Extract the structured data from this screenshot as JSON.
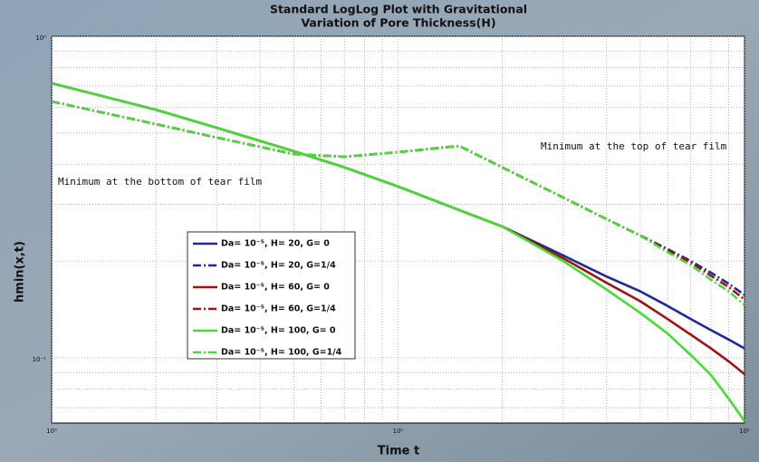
{
  "chart_data": {
    "type": "line",
    "title": [
      "Standard LogLog Plot with Gravitational",
      "Variation of Pore Thickness(H)"
    ],
    "x_label": "Time t",
    "y_label": "hmin(x,t)",
    "log_x": true,
    "log_y": true,
    "grid": true,
    "xlim": [
      1,
      100
    ],
    "ylim": [
      0.0627,
      1
    ],
    "xticks": [
      {
        "value": 1,
        "label": "10⁰"
      },
      {
        "value": 10,
        "label": "10¹"
      },
      {
        "value": 100,
        "label": "10²"
      }
    ],
    "yticks": [
      {
        "value": 0.1,
        "label": "10⁻¹"
      },
      {
        "value": 1,
        "label": "10⁰"
      }
    ],
    "x": [
      1,
      2,
      3,
      5,
      7,
      10,
      15,
      20,
      30,
      40,
      50,
      60,
      70,
      80,
      90,
      100
    ],
    "series": [
      {
        "name": "Da= 10⁻⁵, H= 20, G= 0",
        "color": "#1c2a9c",
        "dash": "solid",
        "values": [
          0.714,
          0.591,
          0.519,
          0.439,
          0.391,
          0.341,
          0.288,
          0.256,
          0.208,
          0.179,
          0.161,
          0.145,
          0.132,
          0.122,
          0.114,
          0.107
        ]
      },
      {
        "name": "Da= 10⁻⁵, H= 20, G=1/4",
        "color": "#1c2a9c",
        "dash": "dashdot",
        "values": [
          0.627,
          0.533,
          0.484,
          0.43,
          0.422,
          0.436,
          0.456,
          0.391,
          0.315,
          0.27,
          0.24,
          0.218,
          0.2,
          0.184,
          0.17,
          0.157
        ]
      },
      {
        "name": "Da= 10⁻⁵, H= 60, G= 0",
        "color": "#a31212",
        "dash": "solid",
        "values": [
          0.714,
          0.591,
          0.519,
          0.439,
          0.391,
          0.341,
          0.288,
          0.256,
          0.204,
          0.171,
          0.15,
          0.132,
          0.118,
          0.107,
          0.0975,
          0.089
        ]
      },
      {
        "name": "Da= 10⁻⁵, H= 60, G=1/4",
        "color": "#a31212",
        "dash": "dashdot",
        "values": [
          0.627,
          0.533,
          0.484,
          0.43,
          0.422,
          0.436,
          0.456,
          0.391,
          0.315,
          0.27,
          0.24,
          0.216,
          0.198,
          0.18,
          0.166,
          0.152
        ]
      },
      {
        "name": "Da= 10⁻⁵, H= 100, G= 0",
        "color": "#44dd33",
        "dash": "solid",
        "values": [
          0.714,
          0.591,
          0.519,
          0.439,
          0.391,
          0.341,
          0.288,
          0.256,
          0.2,
          0.163,
          0.138,
          0.119,
          0.102,
          0.0884,
          0.0747,
          0.0635
        ]
      },
      {
        "name": "Da= 10⁻⁵, H= 100, G=1/4",
        "color": "#44dd33",
        "dash": "dashdot",
        "values": [
          0.627,
          0.533,
          0.484,
          0.43,
          0.422,
          0.436,
          0.456,
          0.391,
          0.315,
          0.27,
          0.24,
          0.213,
          0.194,
          0.175,
          0.161,
          0.146
        ]
      }
    ],
    "annotations": [
      "Minimum at the bottom of tear film",
      "Minimum at the top of tear film"
    ]
  }
}
